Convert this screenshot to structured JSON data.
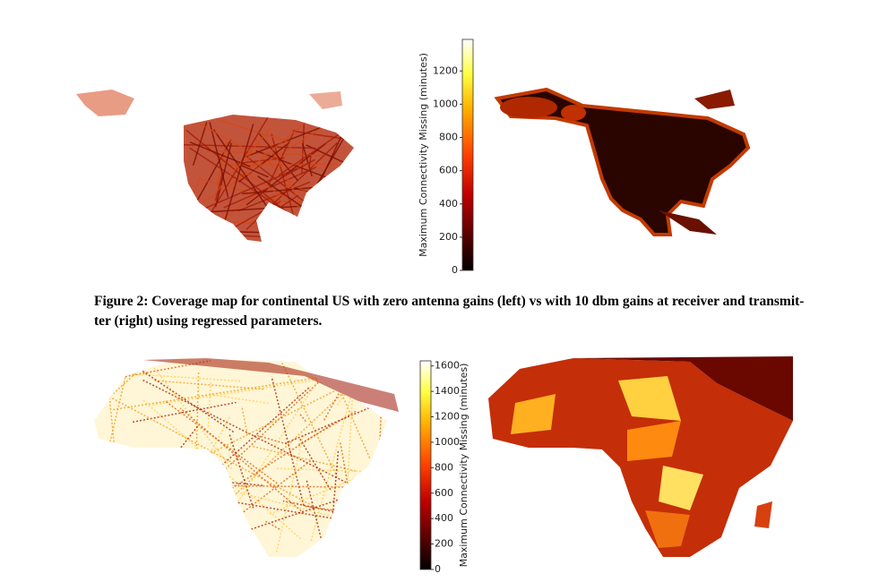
{
  "figure_top": {
    "colorbar": {
      "label": "Maximum Connectivity Missing (minutes)",
      "lim": [
        0,
        1390
      ],
      "ticks": [
        0,
        200,
        400,
        600,
        800,
        1000,
        1200
      ]
    }
  },
  "caption": {
    "lines": [
      "Figure 2: Coverage map for continental US with zero antenna gains (left) vs with 10 dbm gains at receiver and transmit-",
      "ter (right) using regressed parameters."
    ]
  },
  "figure_bottom": {
    "colorbar": {
      "label": "Maximum Connectivity Missing (minutes)",
      "lim": [
        0,
        1640
      ],
      "ticks": [
        0,
        200,
        400,
        600,
        800,
        1000,
        1200,
        1400,
        1600
      ]
    }
  }
}
